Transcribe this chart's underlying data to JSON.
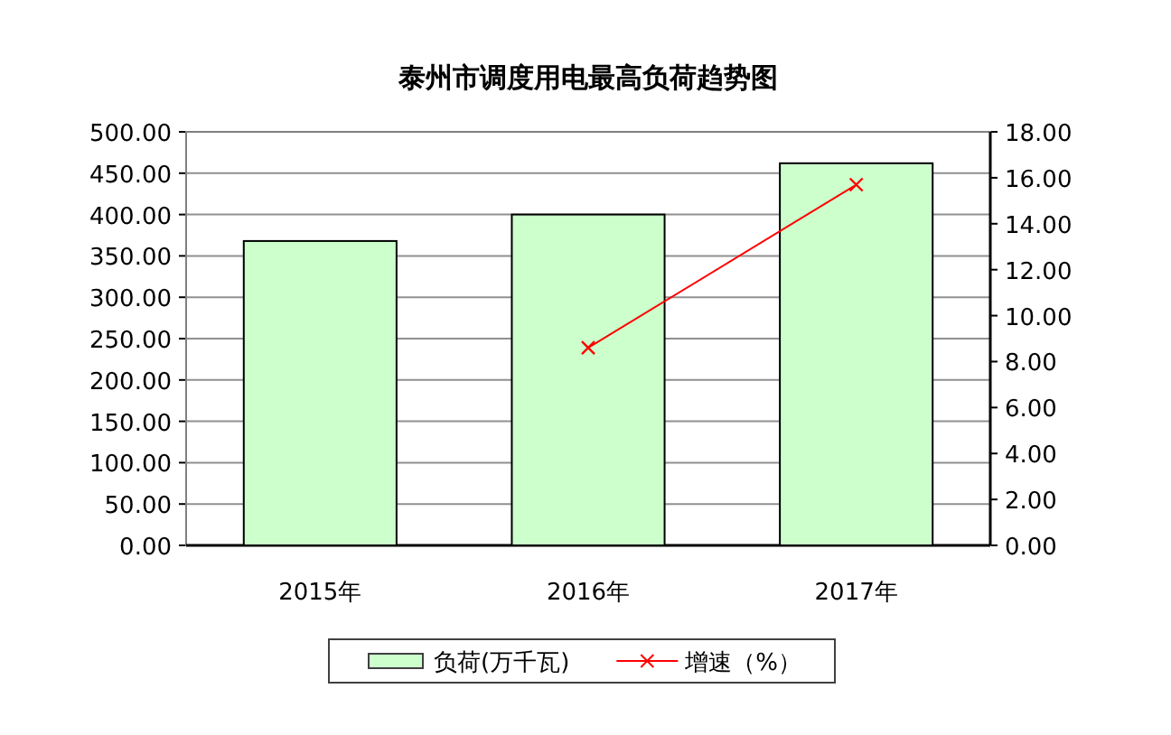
{
  "chart_data": {
    "type": "bar",
    "title": "泰州市调度用电最高负荷趋势图",
    "categories": [
      "2015年",
      "2016年",
      "2017年"
    ],
    "series": [
      {
        "name": "负荷(万千瓦)",
        "color": "#ccffcc",
        "values": [
          368,
          400,
          462
        ]
      },
      {
        "name": "增速（%）",
        "type": "line",
        "axis": "y2",
        "color": "#ff0000",
        "values": [
          null,
          8.6,
          15.7
        ]
      }
    ],
    "ylim": [
      0,
      500
    ],
    "yticks": [
      {
        "value": 0,
        "label": "0.00"
      },
      {
        "value": 50,
        "label": "50.00"
      },
      {
        "value": 100,
        "label": "100.00"
      },
      {
        "value": 150,
        "label": "150.00"
      },
      {
        "value": 200,
        "label": "200.00"
      },
      {
        "value": 250,
        "label": "250.00"
      },
      {
        "value": 300,
        "label": "300.00"
      },
      {
        "value": 350,
        "label": "350.00"
      },
      {
        "value": 400,
        "label": "400.00"
      },
      {
        "value": 450,
        "label": "450.00"
      },
      {
        "value": 500,
        "label": "500.00"
      }
    ],
    "y2lim": [
      0,
      18
    ],
    "y2ticks": [
      {
        "value": 0,
        "label": "0.00"
      },
      {
        "value": 2,
        "label": "2.00"
      },
      {
        "value": 4,
        "label": "4.00"
      },
      {
        "value": 6,
        "label": "6.00"
      },
      {
        "value": 8,
        "label": "8.00"
      },
      {
        "value": 10,
        "label": "10.00"
      },
      {
        "value": 12,
        "label": "12.00"
      },
      {
        "value": 14,
        "label": "14.00"
      },
      {
        "value": 16,
        "label": "16.00"
      },
      {
        "value": 18,
        "label": "18.00"
      }
    ],
    "grid": "y",
    "legend": "bottom",
    "marker": "cross"
  }
}
